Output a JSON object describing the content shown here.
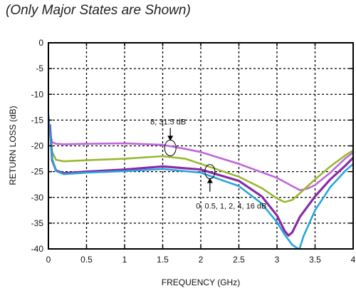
{
  "subtitle": "(Only Major States are Shown)",
  "chart_data": {
    "type": "line",
    "title": "",
    "xlabel": "FREQUENCY (GHz)",
    "ylabel": "RETURN LOSS (dB)",
    "xlim": [
      0,
      4
    ],
    "ylim": [
      -40,
      0
    ],
    "xticks": [
      "0",
      "0.5",
      "1",
      "1.5",
      "2",
      "2.5",
      "3",
      "3.5",
      "4"
    ],
    "yticks": [
      "0",
      "-5",
      "-10",
      "-15",
      "-20",
      "-25",
      "-30",
      "-35",
      "-40"
    ],
    "grid": true,
    "series": [
      {
        "color": "#c066d8",
        "x": [
          0.02,
          0.05,
          0.1,
          0.2,
          0.5,
          1.0,
          1.5,
          1.8,
          2.0,
          2.5,
          3.0,
          3.2,
          3.3,
          3.4,
          3.5,
          3.7,
          3.9,
          4.0
        ],
        "y": [
          -17.5,
          -19.3,
          -19.6,
          -19.7,
          -19.6,
          -19.5,
          -19.8,
          -20.6,
          -21.2,
          -23.5,
          -26.2,
          -27.8,
          -28.6,
          -28.3,
          -27.6,
          -25.2,
          -22.4,
          -21.3
        ]
      },
      {
        "color": "#9ab832",
        "x": [
          0.02,
          0.05,
          0.1,
          0.2,
          0.5,
          1.0,
          1.5,
          1.8,
          2.0,
          2.5,
          2.8,
          3.0,
          3.1,
          3.2,
          3.3,
          3.5,
          3.7,
          3.9,
          4.0
        ],
        "y": [
          -16.0,
          -21.2,
          -22.7,
          -23.0,
          -22.8,
          -22.5,
          -22.0,
          -22.5,
          -23.5,
          -26.0,
          -28.2,
          -30.2,
          -30.9,
          -30.5,
          -29.2,
          -26.5,
          -24.0,
          -21.8,
          -20.9
        ]
      },
      {
        "color": "#8a2aa8",
        "x": [
          0.02,
          0.05,
          0.1,
          0.2,
          0.5,
          1.0,
          1.5,
          2.0,
          2.5,
          2.8,
          3.0,
          3.1,
          3.15,
          3.2,
          3.3,
          3.5,
          3.7,
          3.9,
          4.0
        ],
        "y": [
          -16.0,
          -22.8,
          -24.8,
          -25.3,
          -25.0,
          -24.6,
          -24.0,
          -24.6,
          -26.8,
          -29.8,
          -33.5,
          -36.5,
          -37.4,
          -36.8,
          -33.8,
          -29.8,
          -26.5,
          -23.8,
          -22.3
        ]
      },
      {
        "color": "#2aa4dc",
        "x": [
          0.0,
          0.05,
          0.1,
          0.2,
          0.5,
          1.0,
          1.5,
          2.0,
          2.5,
          2.8,
          3.0,
          3.1,
          3.2,
          3.28,
          3.3,
          3.35,
          3.5,
          3.7,
          3.9,
          4.0
        ],
        "y": [
          -14.0,
          -22.5,
          -24.9,
          -25.5,
          -25.2,
          -24.9,
          -24.5,
          -25.2,
          -27.8,
          -31.2,
          -34.8,
          -37.2,
          -39.2,
          -40.0,
          -39.8,
          -37.5,
          -32.5,
          -28.0,
          -24.8,
          -23.5
        ]
      }
    ],
    "annotations": [
      {
        "text": "8, 31.5 dB",
        "x": 1.6,
        "y": -20.4
      },
      {
        "text": "0, 0.5, 1, 2, 4, 16 dB",
        "x": 2.12,
        "y": -25.0
      }
    ]
  }
}
